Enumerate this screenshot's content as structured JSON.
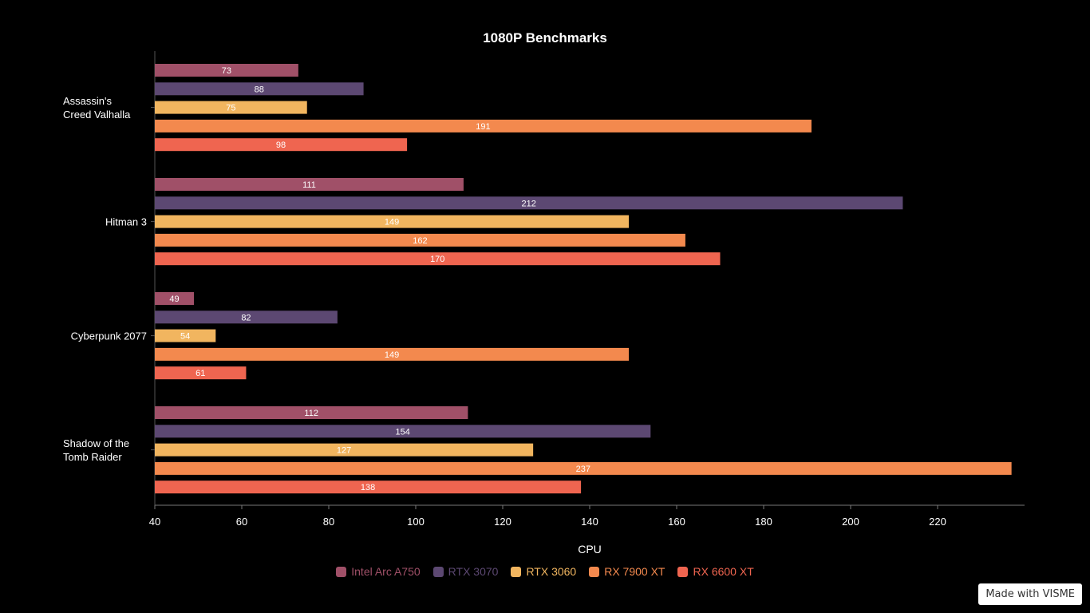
{
  "chart_data": {
    "type": "bar",
    "orientation": "horizontal",
    "title": "1080P Benchmarks",
    "xlabel": "CPU",
    "ylabel": "",
    "xlim": [
      40,
      240
    ],
    "xticks": [
      40,
      60,
      80,
      100,
      120,
      140,
      160,
      180,
      200,
      220
    ],
    "grid": false,
    "legend_position": "bottom-center",
    "categories": [
      {
        "label_lines": [
          "Assassin's",
          "Creed Valhalla"
        ]
      },
      {
        "label_lines": [
          "Hitman 3"
        ]
      },
      {
        "label_lines": [
          "Cyberpunk 2077"
        ]
      },
      {
        "label_lines": [
          "Shadow of the",
          "Tomb Raider"
        ]
      }
    ],
    "series": [
      {
        "name": "Intel Arc A750",
        "color": "#A05068",
        "values": [
          73,
          111,
          49,
          112
        ]
      },
      {
        "name": "RTX 3070",
        "color": "#5C4872",
        "values": [
          88,
          212,
          82,
          154
        ]
      },
      {
        "name": "RTX 3060",
        "color": "#F1B55F",
        "values": [
          75,
          149,
          54,
          127
        ]
      },
      {
        "name": "RX 7900 XT",
        "color": "#F3894E",
        "values": [
          191,
          162,
          149,
          237
        ]
      },
      {
        "name": "RX 6600 XT",
        "color": "#EF6550",
        "values": [
          98,
          170,
          61,
          138
        ]
      }
    ]
  },
  "watermark": "Made with VISME"
}
